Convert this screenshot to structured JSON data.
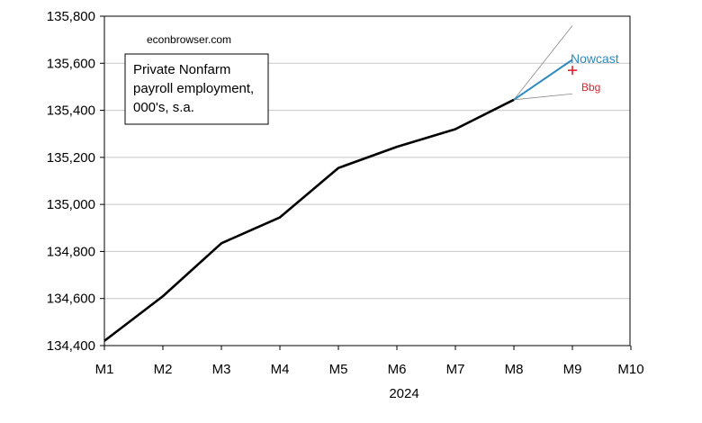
{
  "chart_data": {
    "type": "line",
    "watermark": "econbrowser.com",
    "legend_box_lines": [
      "Private Nonfarm",
      "payroll employment,",
      "000's, s.a."
    ],
    "year_label": "2024",
    "categories": [
      "M1",
      "M2",
      "M3",
      "M4",
      "M5",
      "M6",
      "M7",
      "M8",
      "M9",
      "M10"
    ],
    "y_ticks": [
      134400,
      134600,
      134800,
      135000,
      135200,
      135400,
      135600,
      135800
    ],
    "y_tick_labels": [
      "134,400",
      "134,600",
      "134,800",
      "135,000",
      "135,200",
      "135,400",
      "135,600",
      "135,800"
    ],
    "ylim": [
      134400,
      135800
    ],
    "grid": "horizontal",
    "series": [
      {
        "role": "actual",
        "color": "#000000",
        "points": [
          {
            "x": "M1",
            "y": 134420
          },
          {
            "x": "M2",
            "y": 134610
          },
          {
            "x": "M3",
            "y": 134835
          },
          {
            "x": "M4",
            "y": 134945
          },
          {
            "x": "M5",
            "y": 135155
          },
          {
            "x": "M6",
            "y": 135245
          },
          {
            "x": "M7",
            "y": 135320
          },
          {
            "x": "M8",
            "y": 135445
          }
        ]
      },
      {
        "name": "Nowcast",
        "color": "#2e8bc0",
        "points": [
          {
            "x": "M8",
            "y": 135445
          },
          {
            "x": "M9",
            "y": 135615
          }
        ]
      },
      {
        "role": "band-upper",
        "color": "#888888",
        "points": [
          {
            "x": "M8",
            "y": 135445
          },
          {
            "x": "M9",
            "y": 135760
          }
        ]
      },
      {
        "role": "band-lower",
        "color": "#888888",
        "points": [
          {
            "x": "M8",
            "y": 135445
          },
          {
            "x": "M9",
            "y": 135470
          }
        ]
      }
    ],
    "markers": [
      {
        "name": "Bbg",
        "x": "M9",
        "y": 135570,
        "symbol": "+",
        "color": "#e8202a"
      }
    ]
  }
}
